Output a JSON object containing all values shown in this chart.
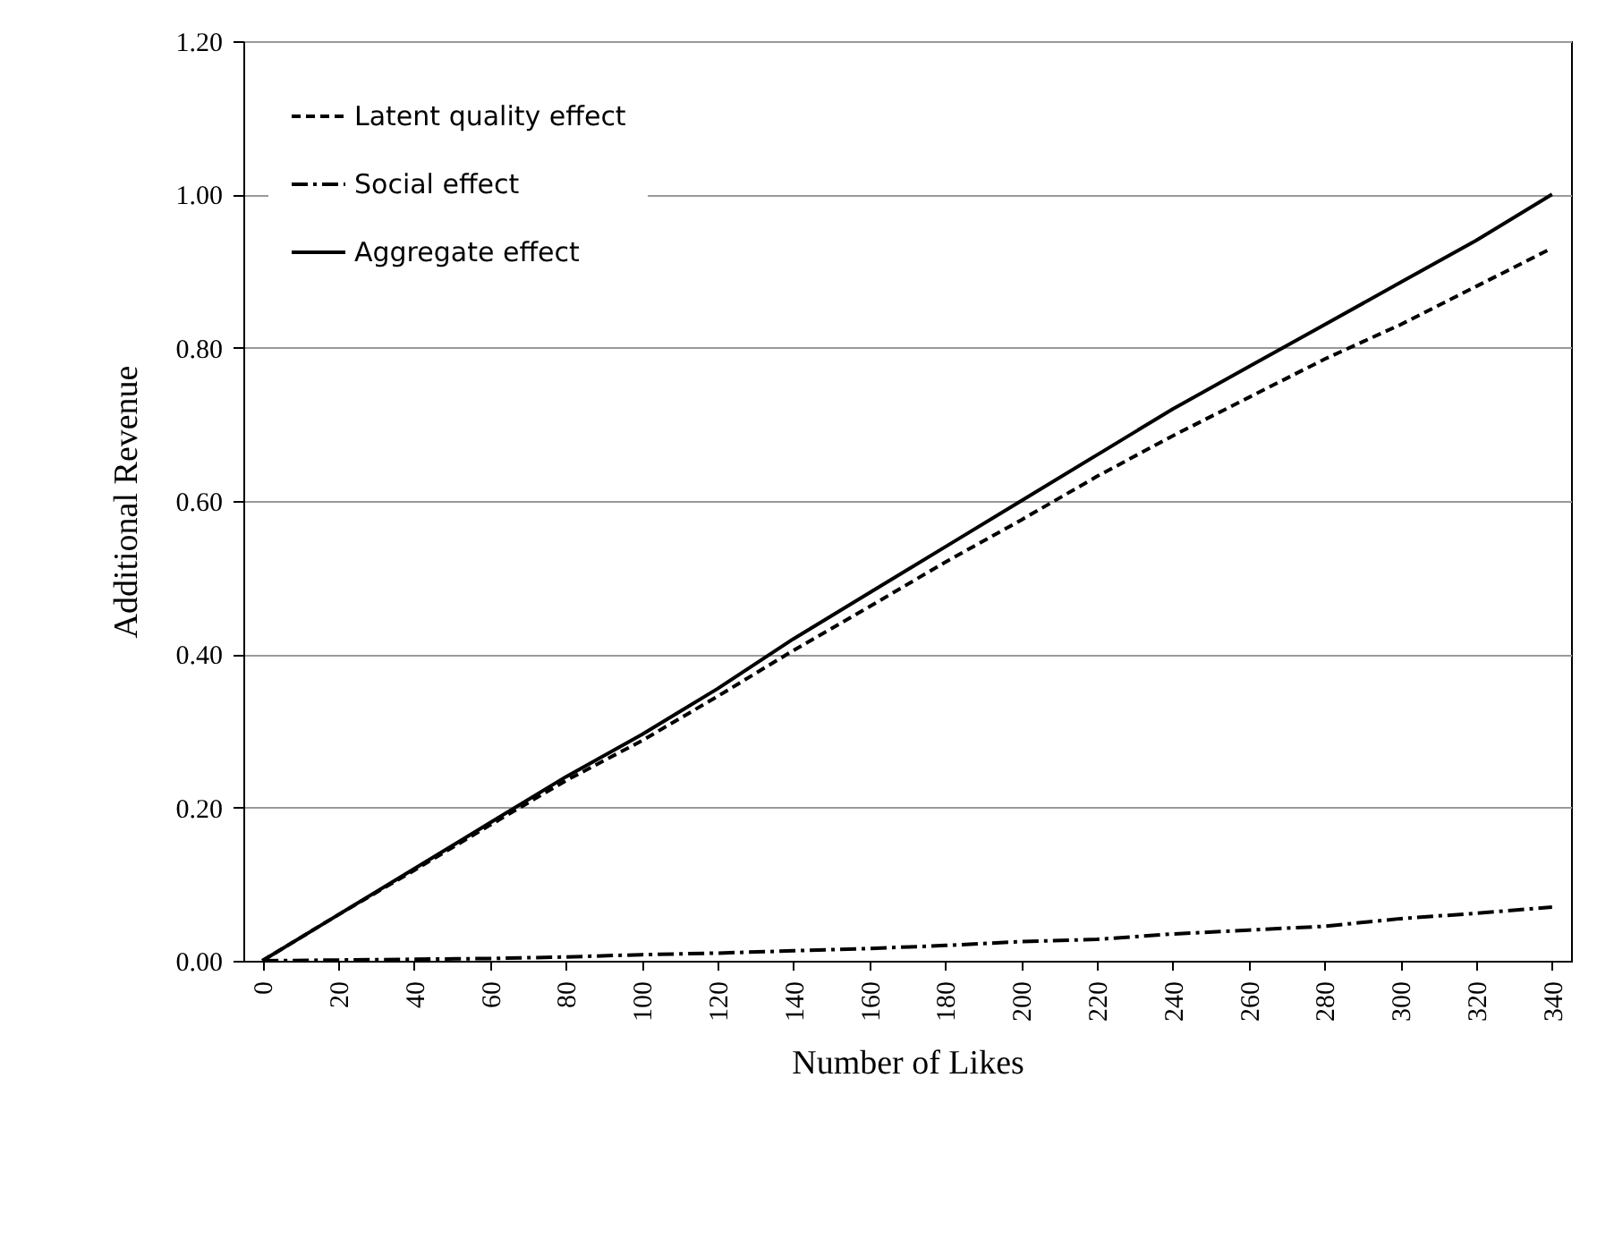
{
  "chart_data": {
    "type": "line",
    "xlabel": "Number of Likes",
    "ylabel": "Additional Revenue",
    "x": [
      0,
      20,
      40,
      60,
      80,
      100,
      120,
      140,
      160,
      180,
      200,
      220,
      240,
      260,
      280,
      300,
      320,
      340
    ],
    "series": [
      {
        "name": "Latent quality effect",
        "color": "#000000",
        "line_style": "dashed",
        "values": [
          0,
          0.06,
          0.118,
          0.177,
          0.235,
          0.287,
          0.345,
          0.405,
          0.462,
          0.52,
          0.575,
          0.632,
          0.685,
          0.735,
          0.785,
          0.83,
          0.88,
          0.93
        ]
      },
      {
        "name": "Social effect",
        "color": "#000000",
        "line_style": "dashdot",
        "values": [
          0,
          0.001,
          0.002,
          0.003,
          0.005,
          0.008,
          0.01,
          0.013,
          0.016,
          0.02,
          0.025,
          0.028,
          0.035,
          0.04,
          0.045,
          0.055,
          0.062,
          0.07
        ]
      },
      {
        "name": "Aggregate effect",
        "color": "#000000",
        "line_style": "solid",
        "values": [
          0,
          0.06,
          0.12,
          0.18,
          0.24,
          0.295,
          0.355,
          0.42,
          0.48,
          0.54,
          0.6,
          0.66,
          0.72,
          0.775,
          0.83,
          0.885,
          0.94,
          1.0
        ]
      }
    ],
    "xlim": [
      -5,
      345
    ],
    "xticks": [
      0,
      20,
      40,
      60,
      80,
      100,
      120,
      140,
      160,
      180,
      200,
      220,
      240,
      260,
      280,
      300,
      320,
      340
    ],
    "ylim": [
      0,
      1.2
    ],
    "yticks": [
      {
        "value": 0,
        "label": "0.00"
      },
      {
        "value": 0.2,
        "label": "0.20"
      },
      {
        "value": 0.4,
        "label": "0.40"
      },
      {
        "value": 0.6,
        "label": "0.60"
      },
      {
        "value": 0.8,
        "label": "0.80"
      },
      {
        "value": 1.0,
        "label": "1.00"
      },
      {
        "value": 1.2,
        "label": "1.20"
      }
    ],
    "grid": "y",
    "legend": "top left",
    "marker": "none"
  }
}
